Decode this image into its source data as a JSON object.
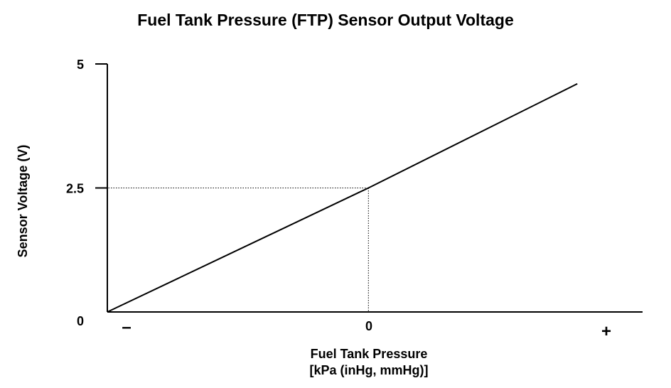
{
  "chart_data": {
    "type": "line",
    "title": "Fuel Tank Pressure (FTP) Sensor Output Voltage",
    "xlabel": "Fuel Tank Pressure",
    "xlabel_units": "[kPa (inHg, mmHg)]",
    "ylabel": "Sensor Voltage (V)",
    "x_tick_labels": [
      "–",
      "0",
      "+"
    ],
    "y_ticks": [
      {
        "label": "0",
        "value": 0
      },
      {
        "label": "2.5",
        "value": 2.5
      },
      {
        "label": "5",
        "value": 5
      }
    ],
    "ylim": [
      0,
      5
    ],
    "xlim": [
      -1,
      1.05
    ],
    "grid": false,
    "series": [
      {
        "x": [
          -1,
          0,
          0.8
        ],
        "y": [
          0,
          2.5,
          4.6
        ]
      }
    ],
    "reference": {
      "x": 0,
      "y": 2.5,
      "style": "dotted"
    },
    "colors": {
      "line": "#000000",
      "axis": "#000000",
      "background": "#ffffff"
    }
  }
}
